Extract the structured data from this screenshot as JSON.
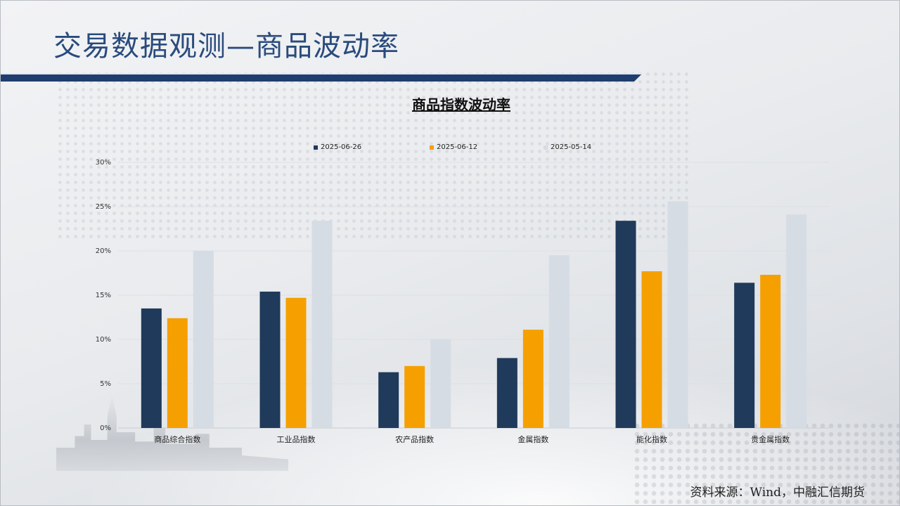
{
  "page": {
    "title": "交易数据观测—商品波动率",
    "source": "资料来源：Wind，中融汇信期货"
  },
  "chart_data": {
    "type": "bar",
    "title": "商品指数波动率",
    "categories": [
      "商品综合指数",
      "工业品指数",
      "农产品指数",
      "金属指数",
      "能化指数",
      "贵金属指数"
    ],
    "series": [
      {
        "name": "2025-06-26",
        "color": "#1f3a5a",
        "values": [
          13.5,
          15.4,
          6.3,
          7.9,
          23.4,
          16.4
        ]
      },
      {
        "name": "2025-06-12",
        "color": "#f5a000",
        "values": [
          12.4,
          14.7,
          7.0,
          11.1,
          17.7,
          17.3
        ]
      },
      {
        "name": "2025-05-14",
        "color": "#d6dce4",
        "values": [
          20.0,
          23.4,
          10.0,
          19.5,
          25.6,
          24.1
        ]
      }
    ],
    "ylim": [
      0,
      30
    ],
    "yticks": [
      "0%",
      "5%",
      "10%",
      "15%",
      "20%",
      "25%",
      "30%"
    ],
    "grid": true,
    "legend": "top"
  }
}
